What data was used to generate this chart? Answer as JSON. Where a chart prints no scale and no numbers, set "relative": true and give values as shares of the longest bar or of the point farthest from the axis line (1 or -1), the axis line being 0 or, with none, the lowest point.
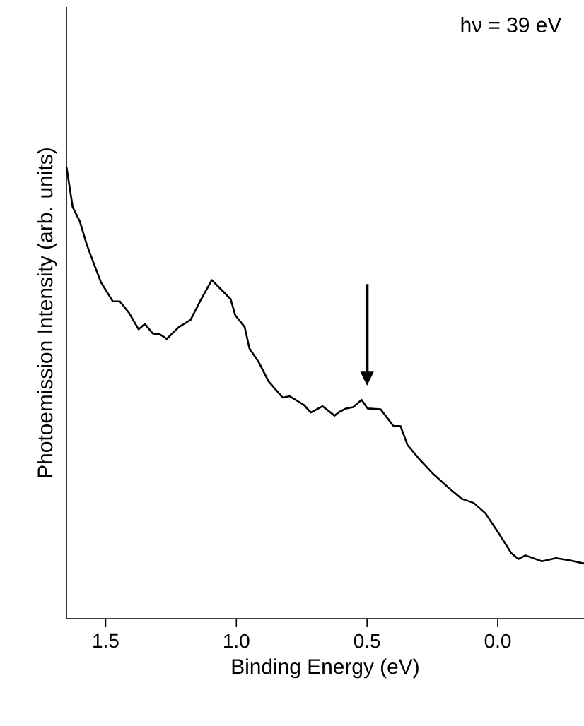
{
  "chart_data": {
    "type": "line",
    "xlabel": "Binding Energy (eV)",
    "ylabel": "Photoemission Intensity (arb. units)",
    "relative": true,
    "annotations": [
      "hν = 39 eV"
    ],
    "xlim": [
      1.65,
      -0.33
    ],
    "xticks": [
      1.5,
      {
        "value": 1,
        "label": "1.0"
      },
      0.5,
      {
        "value": 0,
        "label": "0.0"
      }
    ],
    "grid": false,
    "marker": "none",
    "line_style": "solid",
    "series": [
      {
        "color": "#000000",
        "x": [
          1.65,
          1.626,
          1.599,
          1.572,
          1.545,
          1.518,
          1.473,
          1.446,
          1.41,
          1.374,
          1.35,
          1.32,
          1.293,
          1.266,
          1.22,
          1.175,
          1.139,
          1.094,
          1.058,
          1.022,
          1.004,
          0.968,
          0.95,
          0.914,
          0.877,
          0.823,
          0.796,
          0.742,
          0.715,
          0.67,
          0.624,
          0.607,
          0.58,
          0.553,
          0.521,
          0.498,
          0.448,
          0.399,
          0.372,
          0.345,
          0.3,
          0.245,
          0.191,
          0.137,
          0.092,
          0.047,
          -0.007,
          -0.052,
          -0.079,
          -0.106,
          -0.169,
          -0.223,
          -0.277,
          -0.33
        ],
        "values": [
          1.0,
          0.91,
          0.879,
          0.827,
          0.785,
          0.744,
          0.702,
          0.702,
          0.676,
          0.64,
          0.652,
          0.631,
          0.629,
          0.619,
          0.645,
          0.661,
          0.702,
          0.749,
          0.728,
          0.707,
          0.671,
          0.645,
          0.598,
          0.567,
          0.525,
          0.489,
          0.492,
          0.473,
          0.456,
          0.47,
          0.449,
          0.457,
          0.465,
          0.468,
          0.484,
          0.465,
          0.463,
          0.426,
          0.426,
          0.384,
          0.353,
          0.319,
          0.291,
          0.265,
          0.256,
          0.233,
          0.186,
          0.145,
          0.132,
          0.14,
          0.127,
          0.134,
          0.129,
          0.122
        ]
      }
    ]
  }
}
